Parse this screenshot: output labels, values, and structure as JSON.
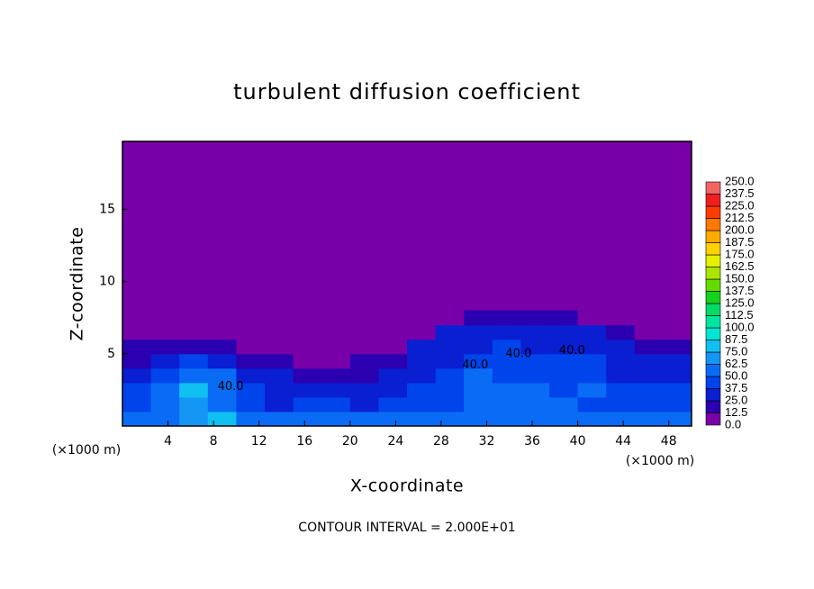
{
  "chart_data": {
    "type": "contour",
    "title": "turbulent diffusion coefficient",
    "x_label": "X-coordinate",
    "y_label": "Z-coordinate",
    "x_unit": "(×1000 m)",
    "y_unit": "(×1000 m)",
    "footer": "CONTOUR INTERVAL = 2.000E+01",
    "xlim": [
      0,
      50
    ],
    "ylim": [
      0,
      19.7
    ],
    "xticks": [
      4,
      8,
      12,
      16,
      20,
      24,
      28,
      32,
      36,
      40,
      44,
      48
    ],
    "yticks": [
      5,
      10,
      15
    ],
    "contour_labels": [
      "40.0",
      "40.0",
      "40.0",
      "40.0"
    ],
    "colorbar": {
      "levels": [
        {
          "value": 0,
          "label": "0.0"
        },
        {
          "value": 12.5,
          "label": "12.5"
        },
        {
          "value": 25,
          "label": "25.0"
        },
        {
          "value": 37.5,
          "label": "37.5"
        },
        {
          "value": 50,
          "label": "50.0"
        },
        {
          "value": 62.5,
          "label": "62.5"
        },
        {
          "value": 75,
          "label": "75.0"
        },
        {
          "value": 87.5,
          "label": "87.5"
        },
        {
          "value": 100,
          "label": "100.0"
        },
        {
          "value": 112.5,
          "label": "112.5"
        },
        {
          "value": 125,
          "label": "125.0"
        },
        {
          "value": 137.5,
          "label": "137.5"
        },
        {
          "value": 150,
          "label": "150.0"
        },
        {
          "value": 162.5,
          "label": "162.5"
        },
        {
          "value": 175,
          "label": "175.0"
        },
        {
          "value": 187.5,
          "label": "187.5"
        },
        {
          "value": 200,
          "label": "200.0"
        },
        {
          "value": 212.5,
          "label": "212.5"
        },
        {
          "value": 225,
          "label": "225.0"
        },
        {
          "value": 237.5,
          "label": "237.5"
        },
        {
          "value": 250,
          "label": "250.0"
        }
      ],
      "colors": [
        "#7800a8",
        "#2a00b0",
        "#0a1ed2",
        "#0044ec",
        "#0a6cf5",
        "#1496f5",
        "#10c0f0",
        "#00e6d2",
        "#00e6a0",
        "#00dc64",
        "#14d21e",
        "#64dc00",
        "#aae600",
        "#e6f000",
        "#ffd200",
        "#ffaa00",
        "#ff7800",
        "#ff3c00",
        "#f01e1e",
        "#f06464"
      ]
    },
    "field": {
      "x": [
        0,
        2.5,
        5,
        7.5,
        10,
        12.5,
        15,
        17.5,
        20,
        22.5,
        25,
        27.5,
        30,
        32.5,
        35,
        37.5,
        40,
        42.5,
        45,
        47.5,
        50
      ],
      "z": [
        0,
        1,
        2,
        3,
        4,
        5,
        6,
        7,
        8
      ],
      "values": [
        [
          50,
          55,
          70,
          75,
          60,
          55,
          50,
          50,
          50,
          50,
          50,
          50,
          55,
          55,
          55,
          55,
          55,
          50,
          50,
          50
        ],
        [
          40,
          50,
          65,
          60,
          45,
          35,
          40,
          40,
          35,
          40,
          45,
          45,
          50,
          50,
          55,
          50,
          45,
          45,
          40,
          40
        ],
        [
          40,
          55,
          75,
          60,
          40,
          30,
          35,
          30,
          30,
          35,
          40,
          45,
          55,
          50,
          50,
          45,
          50,
          40,
          40,
          40
        ],
        [
          30,
          45,
          60,
          50,
          30,
          25,
          20,
          15,
          20,
          30,
          35,
          40,
          50,
          45,
          45,
          40,
          45,
          35,
          35,
          30
        ],
        [
          20,
          30,
          40,
          30,
          20,
          15,
          10,
          10,
          15,
          20,
          30,
          35,
          45,
          40,
          40,
          45,
          40,
          30,
          30,
          25
        ],
        [
          15,
          20,
          20,
          15,
          10,
          5,
          0,
          0,
          5,
          10,
          25,
          30,
          35,
          40,
          35,
          35,
          30,
          25,
          20,
          15
        ],
        [
          5,
          10,
          10,
          5,
          0,
          0,
          0,
          0,
          0,
          0,
          10,
          25,
          30,
          30,
          30,
          30,
          25,
          15,
          10,
          5
        ],
        [
          0,
          0,
          0,
          0,
          0,
          0,
          0,
          0,
          0,
          0,
          0,
          5,
          15,
          20,
          20,
          15,
          10,
          5,
          0,
          0
        ]
      ]
    }
  }
}
